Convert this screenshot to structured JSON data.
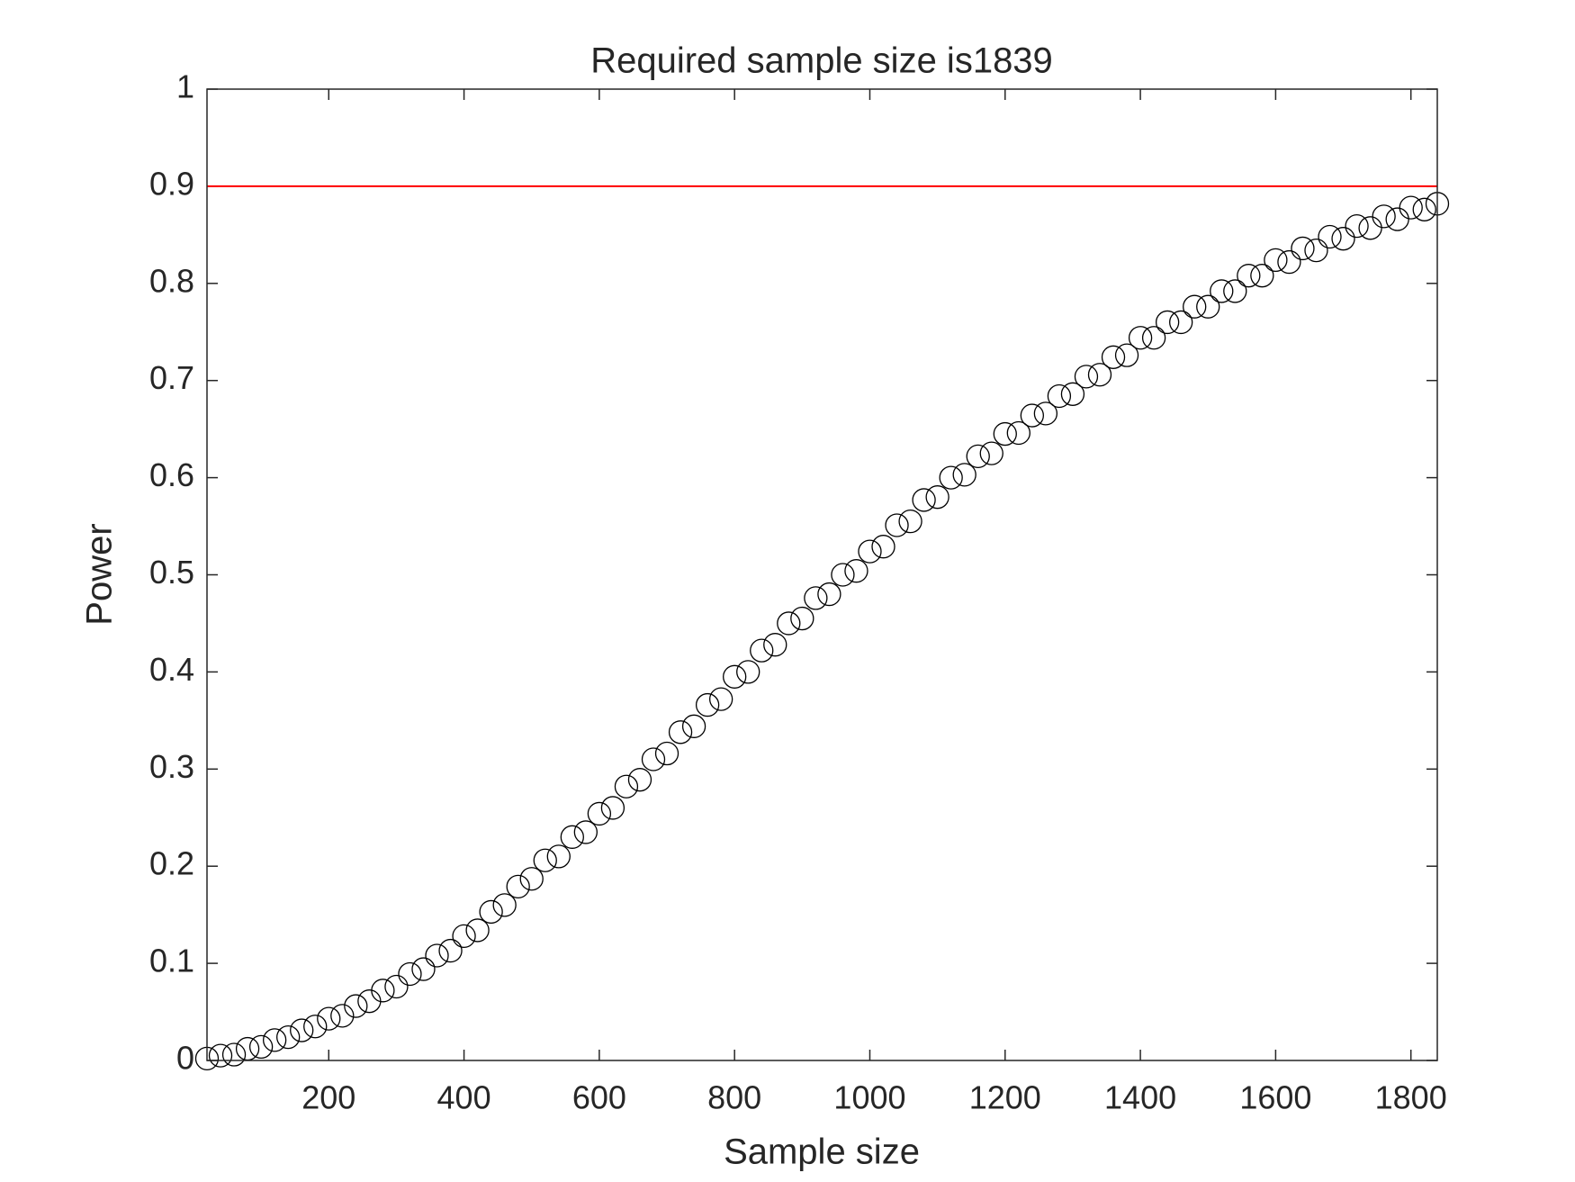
{
  "chart_data": {
    "type": "scatter",
    "title": "Required sample size is1839",
    "x_label": "Sample size",
    "y_label": "Power",
    "xlim": [
      20,
      1839
    ],
    "ylim": [
      0,
      1
    ],
    "xticks": [
      200,
      400,
      600,
      800,
      1000,
      1200,
      1400,
      1600,
      1800
    ],
    "yticks": [
      0,
      0.1,
      0.2,
      0.3,
      0.4,
      0.5,
      0.6,
      0.7,
      0.8,
      0.9,
      1
    ],
    "grid": false,
    "threshold": 0.9,
    "threshold_color": "#ff0000",
    "series": [
      {
        "color": "#000000",
        "x": [
          20,
          40,
          60,
          80,
          100,
          120,
          140,
          160,
          180,
          200,
          220,
          240,
          260,
          280,
          300,
          320,
          340,
          360,
          380,
          400,
          420,
          440,
          460,
          480,
          500,
          520,
          540,
          560,
          580,
          600,
          620,
          640,
          660,
          680,
          700,
          720,
          740,
          760,
          780,
          800,
          820,
          840,
          860,
          880,
          900,
          920,
          940,
          960,
          980,
          1000,
          1020,
          1040,
          1060,
          1080,
          1100,
          1120,
          1140,
          1160,
          1180,
          1200,
          1220,
          1240,
          1260,
          1280,
          1300,
          1320,
          1340,
          1360,
          1380,
          1400,
          1420,
          1440,
          1460,
          1480,
          1500,
          1520,
          1540,
          1560,
          1580,
          1600,
          1620,
          1640,
          1660,
          1680,
          1700,
          1720,
          1740,
          1760,
          1780,
          1800,
          1820,
          1839
        ],
        "values": [
          0.002,
          0.005,
          0.006,
          0.012,
          0.014,
          0.021,
          0.024,
          0.031,
          0.035,
          0.043,
          0.046,
          0.056,
          0.061,
          0.072,
          0.076,
          0.089,
          0.094,
          0.108,
          0.113,
          0.128,
          0.134,
          0.153,
          0.16,
          0.179,
          0.187,
          0.206,
          0.21,
          0.23,
          0.235,
          0.254,
          0.26,
          0.282,
          0.289,
          0.31,
          0.316,
          0.338,
          0.344,
          0.366,
          0.372,
          0.395,
          0.4,
          0.422,
          0.428,
          0.45,
          0.455,
          0.476,
          0.48,
          0.5,
          0.504,
          0.524,
          0.529,
          0.551,
          0.555,
          0.577,
          0.58,
          0.6,
          0.603,
          0.622,
          0.625,
          0.645,
          0.646,
          0.664,
          0.666,
          0.684,
          0.686,
          0.704,
          0.706,
          0.724,
          0.726,
          0.744,
          0.744,
          0.76,
          0.76,
          0.776,
          0.776,
          0.792,
          0.792,
          0.808,
          0.808,
          0.824,
          0.822,
          0.836,
          0.834,
          0.848,
          0.846,
          0.859,
          0.857,
          0.869,
          0.866,
          0.878,
          0.876,
          0.882
        ]
      }
    ]
  }
}
